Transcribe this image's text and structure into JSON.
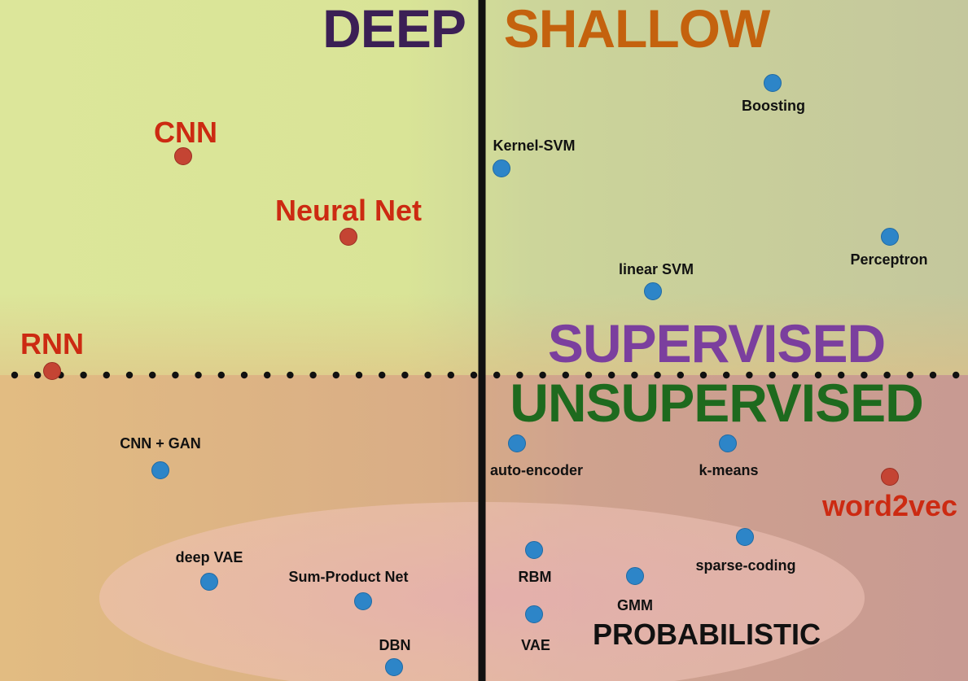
{
  "quadrants": {
    "deep": "DEEP",
    "shallow": "SHALLOW",
    "supervised": "SUPERVISED",
    "unsupervised": "UNSUPERVISED",
    "probabilistic": "PROBABILISTIC"
  },
  "methods": {
    "cnn": "CNN",
    "neural_net": "Neural Net",
    "rnn": "RNN",
    "boosting": "Boosting",
    "kernel_svm": "Kernel-SVM",
    "perceptron": "Perceptron",
    "linear_svm": "linear SVM",
    "cnn_gan": "CNN + GAN",
    "auto_encoder": "auto-encoder",
    "k_means": "k-means",
    "word2vec": "word2vec",
    "deep_vae": "deep VAE",
    "sum_product_net": "Sum-Product Net",
    "dbn": "DBN",
    "rbm": "RBM",
    "gmm": "GMM",
    "sparse_coding": "sparse-coding",
    "vae": "VAE"
  },
  "colors": {
    "deep": "#3b1f55",
    "shallow": "#c4620e",
    "supervised": "#7b3f9e",
    "unsupervised": "#1e6a1e",
    "probabilistic": "#111111",
    "red_dot": "#c44433",
    "blue_dot": "#2d85c8"
  }
}
